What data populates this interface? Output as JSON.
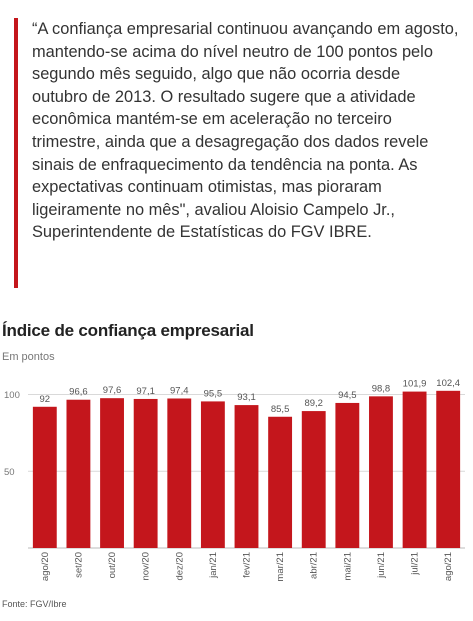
{
  "quote": {
    "text": "“A confiança empresarial continuou avançando em agosto, mantendo-se acima do nível neutro de 100 pontos pelo segundo mês seguido, algo que não ocorria desde outubro de 2013. O resultado sugere que a atividade econômica mantém-se em aceleração no terceiro trimestre, ainda que a desagregação dos dados revele sinais de enfraquecimento da tendência na ponta. As expectativas continuam otimistas, mas pioraram ligeiramente no mês\", avaliou Aloisio Campelo Jr., Superintendente de Estatísticas do FGV IBRE.",
    "bar_color": "#c4161c"
  },
  "chart_data": {
    "type": "bar",
    "title": "Índice de confiança empresarial",
    "subtitle": "Em pontos",
    "source": "Fonte: FGV/Ibre",
    "categories": [
      "ago/20",
      "set/20",
      "out/20",
      "nov/20",
      "dez/20",
      "jan/21",
      "fev/21",
      "mar/21",
      "abr/21",
      "mai/21",
      "jun/21",
      "jul/21",
      "ago/21"
    ],
    "values": [
      92,
      96.6,
      97.6,
      97.1,
      97.4,
      95.5,
      93.1,
      85.5,
      89.2,
      94.5,
      98.8,
      101.9,
      102.4
    ],
    "value_labels": [
      "92",
      "96,6",
      "97,6",
      "97,1",
      "97,4",
      "95,5",
      "93,1",
      "85,5",
      "89,2",
      "94,5",
      "98,8",
      "101,9",
      "102,4"
    ],
    "yticks": [
      50,
      100
    ],
    "ylim": [
      0,
      110
    ],
    "bar_color": "#c4161c",
    "gridlines": true
  }
}
